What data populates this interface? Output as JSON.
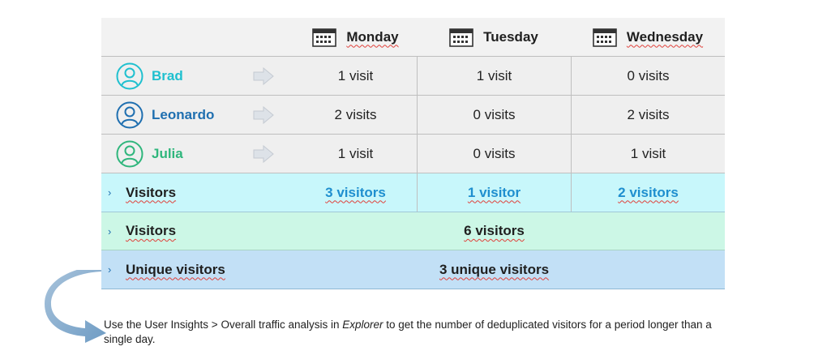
{
  "header": {
    "days": [
      "Monday",
      "Tuesday",
      "Wednesday"
    ]
  },
  "people": [
    {
      "name": "Brad",
      "color": "#1fc0cf",
      "visits": [
        "1 visit",
        "1 visit",
        "0 visits"
      ]
    },
    {
      "name": "Leonardo",
      "color": "#1f6fb0",
      "visits": [
        "2 visits",
        "0 visits",
        "2 visits"
      ]
    },
    {
      "name": "Julia",
      "color": "#2fb67c",
      "visits": [
        "1 visit",
        "0 visits",
        "1 visit"
      ]
    }
  ],
  "visitors_row": {
    "label": "Visitors",
    "values": [
      "3 visitors",
      "1 visitor",
      "2 visitors"
    ]
  },
  "total_row": {
    "label": "Visitors",
    "value": "6 visitors"
  },
  "unique_row": {
    "label": "Unique visitors",
    "value": "3 unique visitors"
  },
  "note": {
    "before": "Use the User Insights > Overall traffic analysis in ",
    "emph": "Explorer",
    "after": " to get the number of deduplicated visitors for a period longer than a single day."
  },
  "icons": {
    "day": "calendar-icon",
    "person": "user-icon",
    "row": "arrow-right-icon",
    "chevron": "chevron-right-icon",
    "note": "curved-arrow-icon"
  },
  "colors": {
    "visitors_row": "#c8f7fb",
    "total_row": "#ccf7e6",
    "unique_row": "#c2e0f6",
    "accent": "#1f8fcf"
  }
}
